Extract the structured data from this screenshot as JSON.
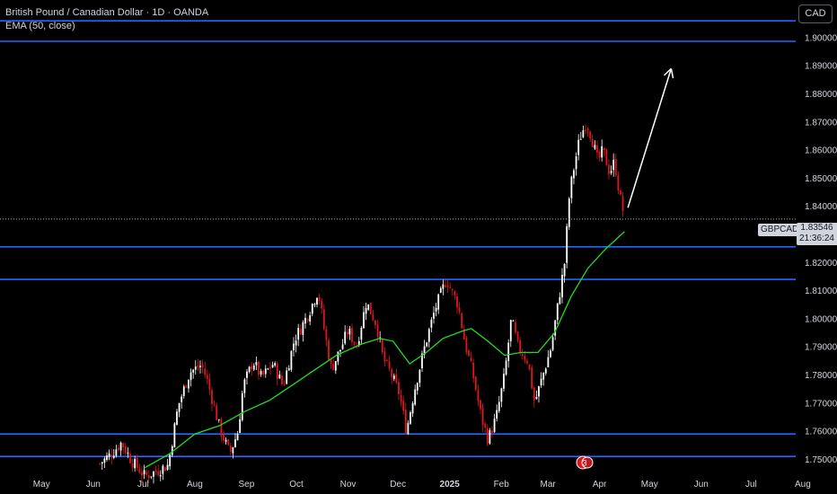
{
  "legend": {
    "title": "British Pound / Canadian Dollar · 1D · OANDA",
    "indicator": "EMA (50, close)"
  },
  "currency_button": "CAD",
  "symbol_tag": "GBPCAD",
  "last_price": "1.83546",
  "countdown": "21:36:24",
  "colors": {
    "background": "#000000",
    "up_candle": "#ffffff",
    "down_candle": "#e0161e",
    "ema": "#22dd22",
    "horizontal_lines": "#2962ff",
    "price_line": "#b2b5be",
    "text": "#d1d4dc",
    "arrow": "#ffffff"
  },
  "chart_data": {
    "type": "candlestick",
    "symbol": "GBPCAD",
    "timeframe": "1D",
    "y_axis_ticks": [
      "1.90000",
      "1.89000",
      "1.88000",
      "1.87000",
      "1.86000",
      "1.85000",
      "1.84000",
      "1.83000",
      "1.82000",
      "1.81000",
      "1.80000",
      "1.79000",
      "1.78000",
      "1.77000",
      "1.76000",
      "1.75000"
    ],
    "x_axis_ticks": [
      "May",
      "Jun",
      "Jul",
      "Aug",
      "Sep",
      "Oct",
      "Nov",
      "Dec",
      "2025",
      "Feb",
      "Mar",
      "Apr",
      "May",
      "Jun",
      "Jul",
      "Aug"
    ],
    "ylim": [
      1.7466,
      1.9134
    ],
    "horizontal_levels": [
      1.906,
      1.8987,
      1.8256,
      1.814,
      1.759,
      1.751
    ],
    "projection_arrow": {
      "from": {
        "date": "2025-04-18",
        "price": 1.8395
      },
      "to": {
        "date": "2025-05-14",
        "price": 1.889
      }
    },
    "price_path": [
      [
        "2024-06-05",
        1.7485
      ],
      [
        "2024-06-12",
        1.752
      ],
      [
        "2024-06-18",
        1.756
      ],
      [
        "2024-06-24",
        1.7495
      ],
      [
        "2024-07-02",
        1.744
      ],
      [
        "2024-07-10",
        1.746
      ],
      [
        "2024-07-16",
        1.748
      ],
      [
        "2024-07-22",
        1.769
      ],
      [
        "2024-07-29",
        1.781
      ],
      [
        "2024-08-05",
        1.7835
      ],
      [
        "2024-08-08",
        1.779
      ],
      [
        "2024-08-12",
        1.77
      ],
      [
        "2024-08-16",
        1.761
      ],
      [
        "2024-08-22",
        1.752
      ],
      [
        "2024-08-27",
        1.76
      ],
      [
        "2024-08-30",
        1.776
      ],
      [
        "2024-09-05",
        1.785
      ],
      [
        "2024-09-10",
        1.779
      ],
      [
        "2024-09-17",
        1.784
      ],
      [
        "2024-09-23",
        1.776
      ],
      [
        "2024-09-30",
        1.793
      ],
      [
        "2024-10-04",
        1.797
      ],
      [
        "2024-10-09",
        1.803
      ],
      [
        "2024-10-14",
        1.81
      ],
      [
        "2024-10-18",
        1.795
      ],
      [
        "2024-10-22",
        1.782
      ],
      [
        "2024-10-28",
        1.79
      ],
      [
        "2024-11-01",
        1.796
      ],
      [
        "2024-11-06",
        1.79
      ],
      [
        "2024-11-12",
        1.806
      ],
      [
        "2024-11-18",
        1.798
      ],
      [
        "2024-11-22",
        1.786
      ],
      [
        "2024-11-27",
        1.78
      ],
      [
        "2024-12-02",
        1.773
      ],
      [
        "2024-12-06",
        1.76
      ],
      [
        "2024-12-11",
        1.775
      ],
      [
        "2024-12-17",
        1.79
      ],
      [
        "2024-12-23",
        1.803
      ],
      [
        "2024-12-30",
        1.814
      ],
      [
        "2025-01-06",
        1.805
      ],
      [
        "2025-01-10",
        1.792
      ],
      [
        "2025-01-15",
        1.78
      ],
      [
        "2025-01-20",
        1.765
      ],
      [
        "2025-01-24",
        1.757
      ],
      [
        "2025-01-29",
        1.765
      ],
      [
        "2025-02-03",
        1.78
      ],
      [
        "2025-02-07",
        1.8
      ],
      [
        "2025-02-11",
        1.79
      ],
      [
        "2025-02-17",
        1.785
      ],
      [
        "2025-02-21",
        1.77
      ],
      [
        "2025-02-26",
        1.78
      ],
      [
        "2025-03-03",
        1.79
      ],
      [
        "2025-03-07",
        1.805
      ],
      [
        "2025-03-11",
        1.82
      ],
      [
        "2025-03-14",
        1.845
      ],
      [
        "2025-03-17",
        1.855
      ],
      [
        "2025-03-20",
        1.864
      ],
      [
        "2025-03-24",
        1.87
      ],
      [
        "2025-03-27",
        1.865
      ],
      [
        "2025-03-31",
        1.856
      ],
      [
        "2025-04-03",
        1.86
      ],
      [
        "2025-04-07",
        1.852
      ],
      [
        "2025-04-10",
        1.856
      ],
      [
        "2025-04-13",
        1.844
      ],
      [
        "2025-04-16",
        1.836
      ]
    ],
    "ema_50": [
      [
        "2024-07-02",
        1.747
      ],
      [
        "2024-07-17",
        1.752
      ],
      [
        "2024-08-01",
        1.759
      ],
      [
        "2024-08-16",
        1.762
      ],
      [
        "2024-08-31",
        1.767
      ],
      [
        "2024-09-15",
        1.771
      ],
      [
        "2024-09-30",
        1.777
      ],
      [
        "2024-10-10",
        1.781
      ],
      [
        "2024-10-25",
        1.787
      ],
      [
        "2024-11-09",
        1.791
      ],
      [
        "2024-11-20",
        1.793
      ],
      [
        "2024-11-28",
        1.792
      ],
      [
        "2024-12-08",
        1.784
      ],
      [
        "2024-12-18",
        1.788
      ],
      [
        "2024-12-28",
        1.793
      ],
      [
        "2025-01-08",
        1.7955
      ],
      [
        "2025-01-14",
        1.7965
      ],
      [
        "2025-01-24",
        1.792
      ],
      [
        "2025-02-03",
        1.787
      ],
      [
        "2025-02-13",
        1.788
      ],
      [
        "2025-02-23",
        1.788
      ],
      [
        "2025-03-05",
        1.795
      ],
      [
        "2025-03-15",
        1.808
      ],
      [
        "2025-03-25",
        1.818
      ],
      [
        "2025-04-05",
        1.825
      ],
      [
        "2025-04-16",
        1.831
      ]
    ]
  }
}
